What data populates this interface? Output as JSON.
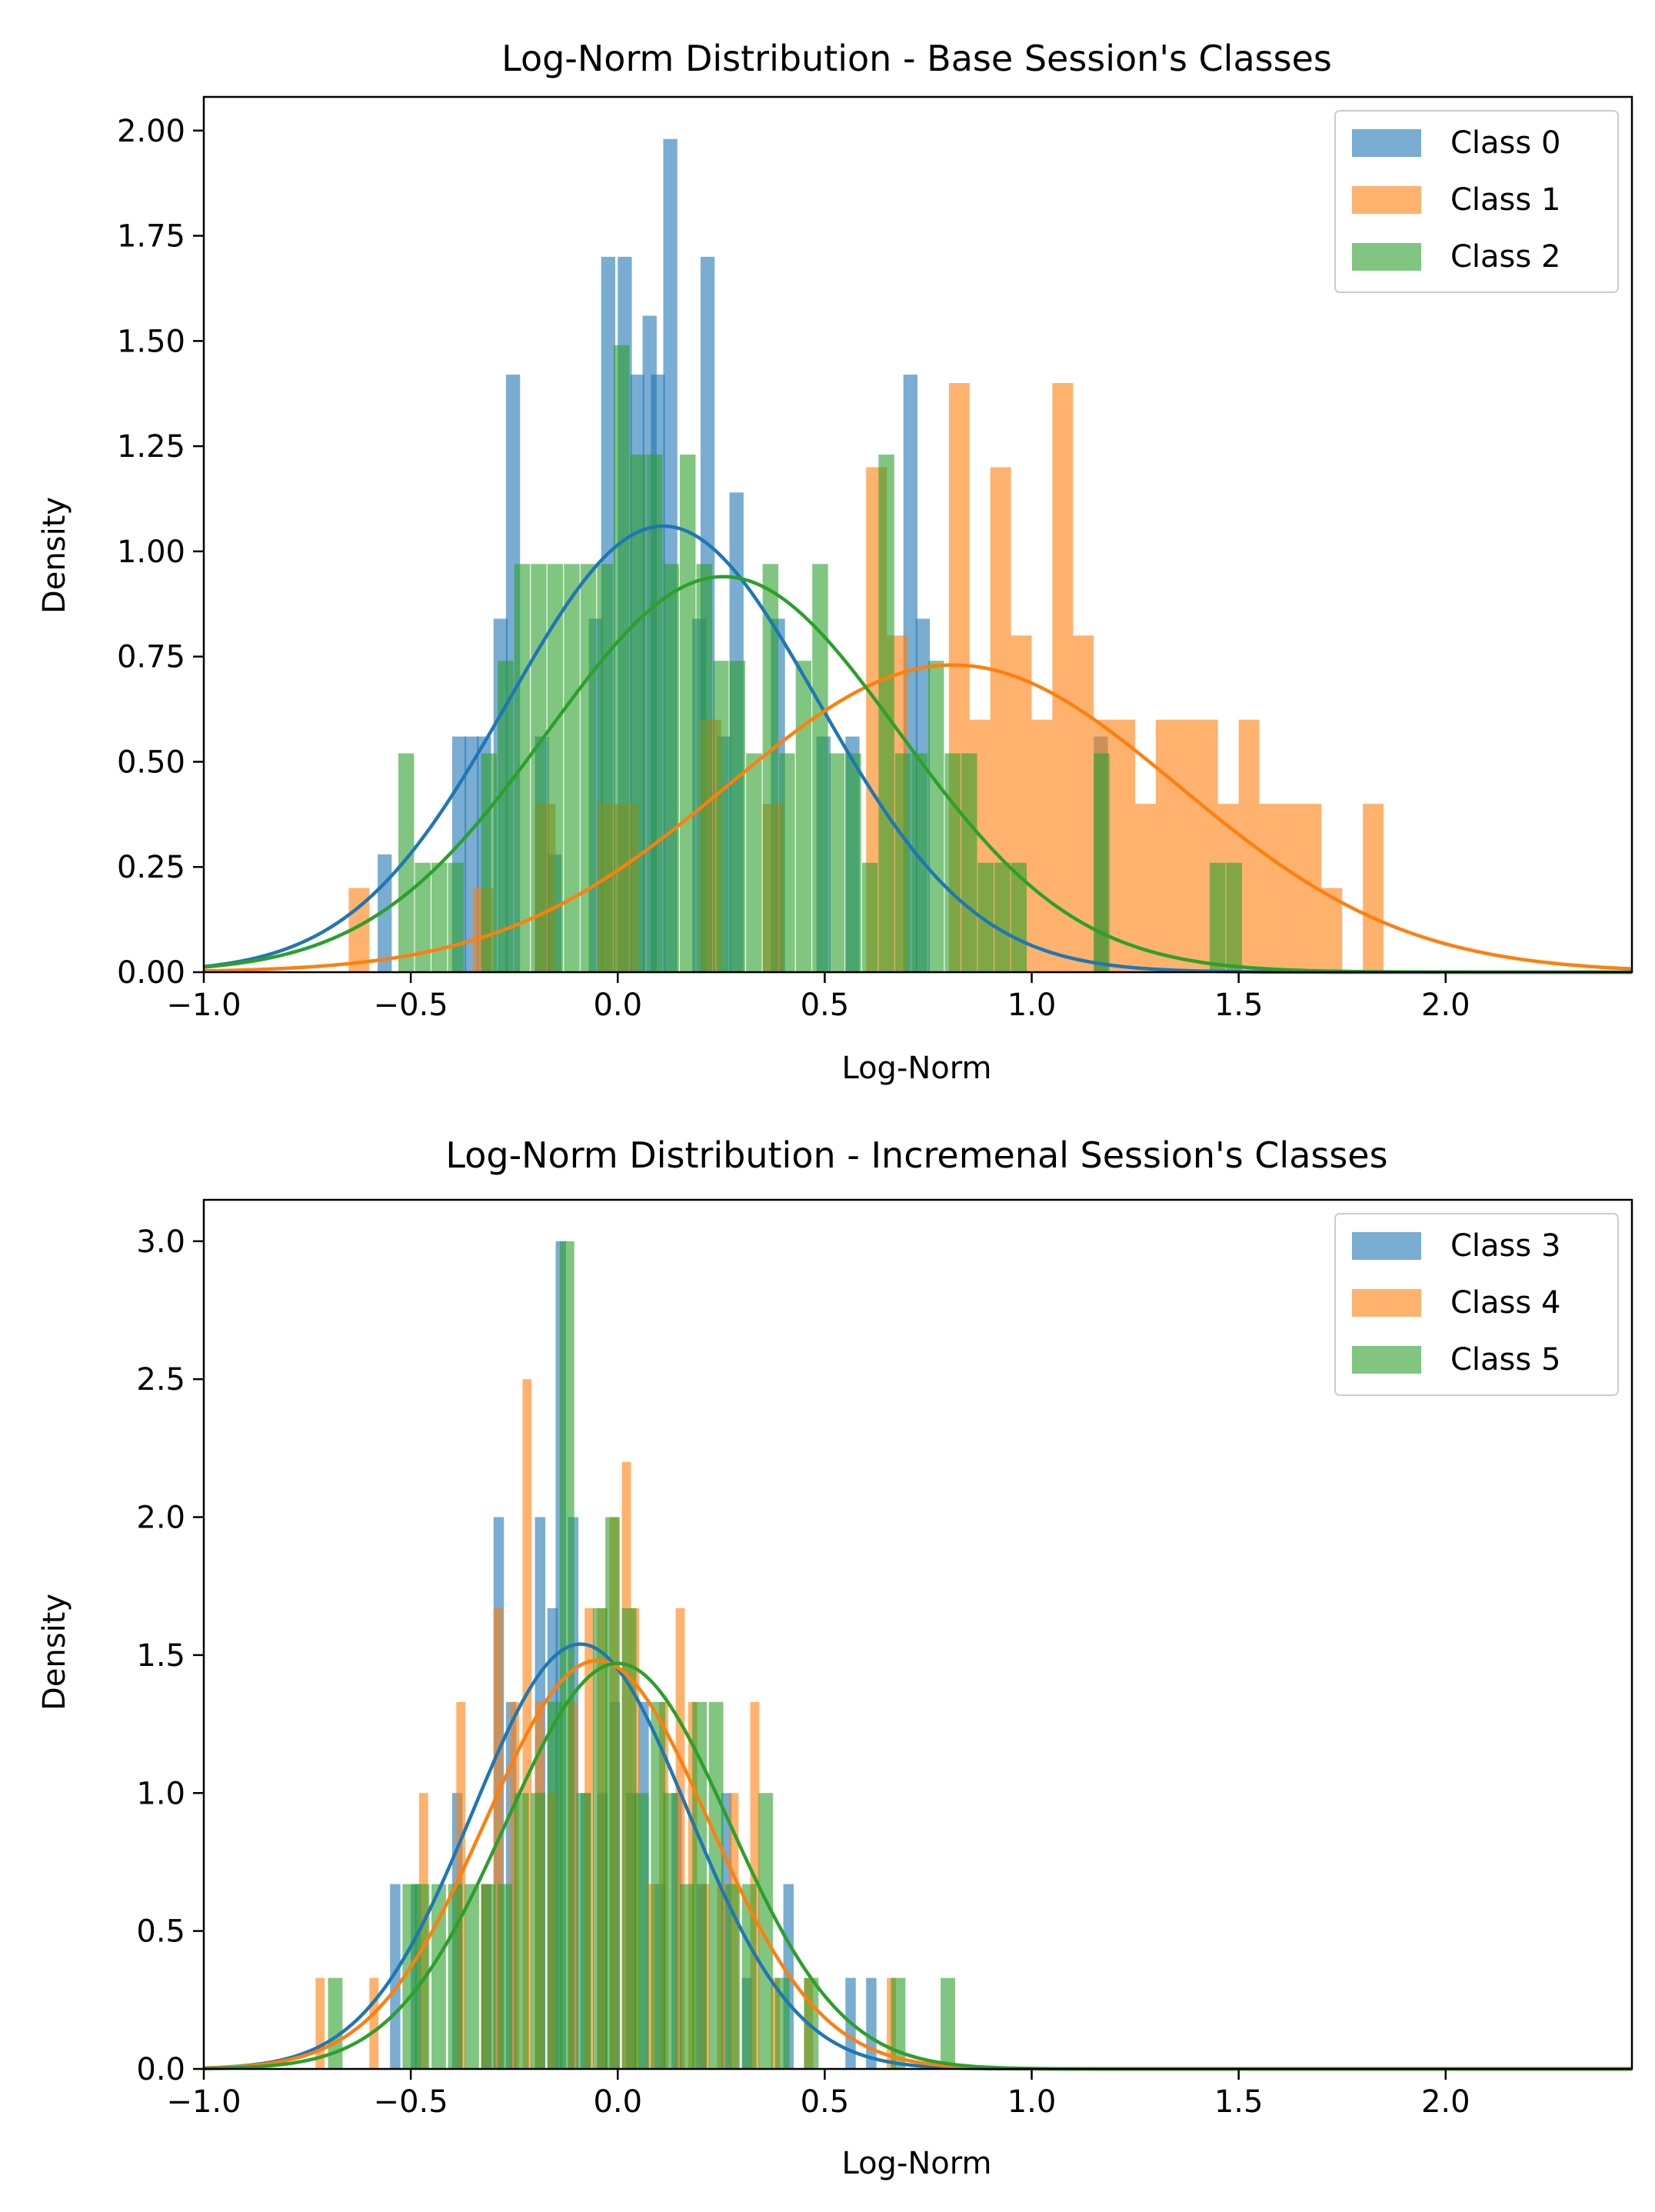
{
  "colors": {
    "blue": "#1f77b4",
    "orange": "#ff7f0e",
    "green": "#2ca02c"
  },
  "chart_data": [
    {
      "type": "histogram",
      "title": "Log-Norm Distribution - Base Session's Classes",
      "xlabel": "Log-Norm",
      "ylabel": "Density",
      "xlim": [
        -1.0,
        2.45
      ],
      "ylim": [
        0.0,
        2.08
      ],
      "xticks": [
        -1.0,
        -0.5,
        0.0,
        0.5,
        1.0,
        1.5,
        2.0
      ],
      "xtick_labels": [
        "−1.0",
        "−0.5",
        "0.0",
        "0.5",
        "1.0",
        "1.5",
        "2.0"
      ],
      "yticks": [
        0.0,
        0.25,
        0.5,
        0.75,
        1.0,
        1.25,
        1.5,
        1.75,
        2.0
      ],
      "ytick_labels": [
        "0.00",
        "0.25",
        "0.50",
        "0.75",
        "1.00",
        "1.25",
        "1.50",
        "1.75",
        "2.00"
      ],
      "grid": false,
      "legend_position": "top-right",
      "series": [
        {
          "name": "Class 0",
          "color": "#1f77b4",
          "bin_width": 0.034,
          "bins": [
            [
              -0.58,
              0.28
            ],
            [
              -0.4,
              0.56
            ],
            [
              -0.37,
              0.56
            ],
            [
              -0.34,
              0.56
            ],
            [
              -0.3,
              0.84
            ],
            [
              -0.27,
              1.42
            ],
            [
              -0.2,
              0.56
            ],
            [
              -0.17,
              0.28
            ],
            [
              -0.07,
              0.84
            ],
            [
              -0.04,
              1.7
            ],
            [
              0.0,
              1.7
            ],
            [
              0.03,
              1.42
            ],
            [
              0.06,
              1.56
            ],
            [
              0.08,
              1.42
            ],
            [
              0.11,
              1.98
            ],
            [
              0.18,
              0.84
            ],
            [
              0.2,
              1.7
            ],
            [
              0.24,
              0.56
            ],
            [
              0.27,
              1.14
            ],
            [
              0.37,
              0.84
            ],
            [
              0.48,
              0.56
            ],
            [
              0.55,
              0.56
            ],
            [
              0.69,
              1.42
            ],
            [
              0.72,
              0.84
            ],
            [
              1.15,
              0.56
            ]
          ],
          "fit": {
            "mean": 0.11,
            "std": 0.375,
            "peak_density": 1.06
          }
        },
        {
          "name": "Class 1",
          "color": "#ff7f0e",
          "bin_width": 0.05,
          "bins": [
            [
              -0.65,
              0.2
            ],
            [
              -0.35,
              0.2
            ],
            [
              -0.2,
              0.4
            ],
            [
              -0.05,
              0.4
            ],
            [
              0.0,
              0.4
            ],
            [
              0.2,
              0.6
            ],
            [
              0.35,
              0.4
            ],
            [
              0.6,
              1.2
            ],
            [
              0.65,
              0.8
            ],
            [
              0.8,
              1.4
            ],
            [
              0.85,
              0.6
            ],
            [
              0.9,
              1.2
            ],
            [
              0.95,
              0.8
            ],
            [
              1.0,
              0.6
            ],
            [
              1.05,
              1.4
            ],
            [
              1.1,
              0.8
            ],
            [
              1.15,
              0.6
            ],
            [
              1.2,
              0.6
            ],
            [
              1.25,
              0.4
            ],
            [
              1.3,
              0.6
            ],
            [
              1.35,
              0.6
            ],
            [
              1.4,
              0.6
            ],
            [
              1.45,
              0.4
            ],
            [
              1.5,
              0.6
            ],
            [
              1.55,
              0.4
            ],
            [
              1.6,
              0.4
            ],
            [
              1.65,
              0.4
            ],
            [
              1.7,
              0.2
            ],
            [
              1.8,
              0.4
            ]
          ],
          "fit": {
            "mean": 0.81,
            "std": 0.545,
            "peak_density": 0.73
          }
        },
        {
          "name": "Class 2",
          "color": "#2ca02c",
          "bin_width": 0.038,
          "bins": [
            [
              -0.53,
              0.52
            ],
            [
              -0.49,
              0.26
            ],
            [
              -0.45,
              0.26
            ],
            [
              -0.41,
              0.26
            ],
            [
              -0.33,
              0.52
            ],
            [
              -0.29,
              0.74
            ],
            [
              -0.25,
              0.97
            ],
            [
              -0.21,
              0.97
            ],
            [
              -0.17,
              0.97
            ],
            [
              -0.13,
              0.97
            ],
            [
              -0.09,
              0.97
            ],
            [
              -0.05,
              0.97
            ],
            [
              -0.01,
              1.49
            ],
            [
              0.03,
              1.23
            ],
            [
              0.07,
              1.23
            ],
            [
              0.11,
              0.97
            ],
            [
              0.15,
              1.23
            ],
            [
              0.19,
              0.97
            ],
            [
              0.23,
              0.74
            ],
            [
              0.27,
              0.74
            ],
            [
              0.31,
              0.52
            ],
            [
              0.35,
              0.97
            ],
            [
              0.39,
              0.52
            ],
            [
              0.43,
              0.74
            ],
            [
              0.47,
              0.97
            ],
            [
              0.51,
              0.52
            ],
            [
              0.55,
              0.52
            ],
            [
              0.59,
              0.26
            ],
            [
              0.63,
              1.23
            ],
            [
              0.67,
              0.52
            ],
            [
              0.71,
              0.52
            ],
            [
              0.75,
              0.74
            ],
            [
              0.79,
              0.52
            ],
            [
              0.83,
              0.52
            ],
            [
              0.87,
              0.26
            ],
            [
              0.91,
              0.26
            ],
            [
              0.95,
              0.26
            ],
            [
              1.15,
              0.52
            ],
            [
              1.43,
              0.26
            ],
            [
              1.47,
              0.26
            ]
          ],
          "fit": {
            "mean": 0.255,
            "std": 0.425,
            "peak_density": 0.94
          }
        }
      ]
    },
    {
      "type": "histogram",
      "title": "Log-Norm Distribution - Incremenal Session's Classes",
      "xlabel": "Log-Norm",
      "ylabel": "Density",
      "xlim": [
        -1.0,
        2.45
      ],
      "ylim": [
        0.0,
        3.15
      ],
      "xticks": [
        -1.0,
        -0.5,
        0.0,
        0.5,
        1.0,
        1.5,
        2.0
      ],
      "xtick_labels": [
        "−1.0",
        "−0.5",
        "0.0",
        "0.5",
        "1.0",
        "1.5",
        "2.0"
      ],
      "yticks": [
        0.0,
        0.5,
        1.0,
        1.5,
        2.0,
        2.5,
        3.0
      ],
      "ytick_labels": [
        "0.0",
        "0.5",
        "1.0",
        "1.5",
        "2.0",
        "2.5",
        "3.0"
      ],
      "grid": false,
      "legend_position": "top-right",
      "series": [
        {
          "name": "Class 3",
          "color": "#1f77b4",
          "bin_width": 0.025,
          "bins": [
            [
              -0.55,
              0.67
            ],
            [
              -0.5,
              0.67
            ],
            [
              -0.4,
              1.0
            ],
            [
              -0.33,
              0.67
            ],
            [
              -0.3,
              2.0
            ],
            [
              -0.27,
              1.33
            ],
            [
              -0.2,
              2.0
            ],
            [
              -0.17,
              1.67
            ],
            [
              -0.15,
              3.0
            ],
            [
              -0.12,
              2.0
            ],
            [
              -0.09,
              1.0
            ],
            [
              -0.05,
              1.0
            ],
            [
              -0.02,
              1.33
            ],
            [
              0.02,
              1.0
            ],
            [
              0.05,
              1.33
            ],
            [
              0.09,
              0.67
            ],
            [
              0.13,
              1.0
            ],
            [
              0.19,
              0.67
            ],
            [
              0.25,
              1.0
            ],
            [
              0.3,
              0.33
            ],
            [
              0.4,
              0.67
            ],
            [
              0.55,
              0.33
            ],
            [
              0.6,
              0.33
            ]
          ],
          "fit": {
            "mean": -0.09,
            "std": 0.26,
            "peak_density": 1.54
          }
        },
        {
          "name": "Class 4",
          "color": "#ff7f0e",
          "bin_width": 0.022,
          "bins": [
            [
              -0.73,
              0.33
            ],
            [
              -0.6,
              0.33
            ],
            [
              -0.48,
              1.0
            ],
            [
              -0.39,
              1.33
            ],
            [
              -0.33,
              0.67
            ],
            [
              -0.3,
              1.67
            ],
            [
              -0.26,
              1.33
            ],
            [
              -0.23,
              2.5
            ],
            [
              -0.2,
              1.33
            ],
            [
              -0.17,
              1.0
            ],
            [
              -0.12,
              1.33
            ],
            [
              -0.08,
              1.67
            ],
            [
              -0.05,
              1.67
            ],
            [
              -0.02,
              2.0
            ],
            [
              0.01,
              2.2
            ],
            [
              0.03,
              1.67
            ],
            [
              0.07,
              0.67
            ],
            [
              0.1,
              1.33
            ],
            [
              0.14,
              1.67
            ],
            [
              0.17,
              1.33
            ],
            [
              0.2,
              0.67
            ],
            [
              0.24,
              0.67
            ],
            [
              0.27,
              1.0
            ],
            [
              0.32,
              1.33
            ],
            [
              0.37,
              0.33
            ],
            [
              0.45,
              0.33
            ],
            [
              0.65,
              0.33
            ]
          ],
          "fit": {
            "mean": -0.05,
            "std": 0.27,
            "peak_density": 1.48
          }
        },
        {
          "name": "Class 5",
          "color": "#2ca02c",
          "bin_width": 0.035,
          "bins": [
            [
              -0.7,
              0.33
            ],
            [
              -0.52,
              0.67
            ],
            [
              -0.49,
              0.67
            ],
            [
              -0.45,
              0.67
            ],
            [
              -0.41,
              0.67
            ],
            [
              -0.37,
              0.67
            ],
            [
              -0.33,
              0.67
            ],
            [
              -0.29,
              0.67
            ],
            [
              -0.25,
              1.0
            ],
            [
              -0.21,
              1.0
            ],
            [
              -0.17,
              1.33
            ],
            [
              -0.14,
              3.0
            ],
            [
              -0.1,
              1.0
            ],
            [
              -0.06,
              1.67
            ],
            [
              -0.03,
              2.0
            ],
            [
              0.01,
              1.67
            ],
            [
              0.04,
              1.0
            ],
            [
              0.08,
              1.33
            ],
            [
              0.11,
              1.0
            ],
            [
              0.15,
              0.67
            ],
            [
              0.18,
              1.33
            ],
            [
              0.22,
              1.33
            ],
            [
              0.26,
              0.67
            ],
            [
              0.3,
              0.67
            ],
            [
              0.34,
              1.0
            ],
            [
              0.38,
              0.33
            ],
            [
              0.45,
              0.33
            ],
            [
              0.66,
              0.33
            ],
            [
              0.78,
              0.33
            ]
          ],
          "fit": {
            "mean": 0.0,
            "std": 0.27,
            "peak_density": 1.47
          }
        }
      ]
    }
  ]
}
